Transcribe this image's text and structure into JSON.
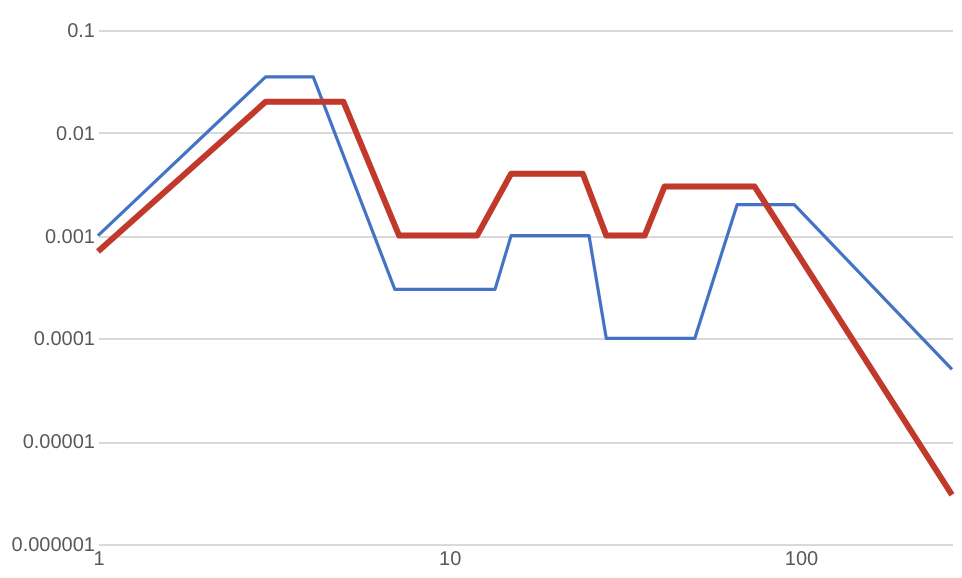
{
  "chart_data": {
    "type": "line",
    "log": "xy",
    "grid": "y",
    "line_style": "solid",
    "marker": "none",
    "xlim": [
      1,
      270
    ],
    "xticks": [
      1,
      10,
      100
    ],
    "ylim": [
      1e-06,
      0.1
    ],
    "yticks": [
      {
        "value": 1e-06,
        "label": "0.000001"
      },
      {
        "value": 1e-05,
        "label": "0.00001"
      },
      {
        "value": 0.0001,
        "label": "0.0001"
      },
      {
        "value": 0.001,
        "label": "0.001"
      },
      {
        "value": 0.01,
        "label": "0.01"
      },
      {
        "value": 0.1,
        "label": "0.1"
      }
    ],
    "series": [
      {
        "color": "#4472c4",
        "x": [
          1,
          3,
          4.1,
          7,
          13.5,
          15,
          25,
          28,
          50,
          66,
          96,
          270
        ],
        "values": [
          0.001,
          0.035,
          0.035,
          0.0003,
          0.0003,
          0.001,
          0.001,
          0.0001,
          0.0001,
          0.002,
          0.002,
          5e-05
        ]
      },
      {
        "color": "#c0392b",
        "x": [
          1,
          3,
          5,
          7.2,
          12,
          15,
          24,
          28,
          36,
          41,
          74,
          270
        ],
        "values": [
          0.0007,
          0.02,
          0.02,
          0.001,
          0.001,
          0.004,
          0.004,
          0.001,
          0.001,
          0.003,
          0.003,
          3e-06
        ]
      }
    ]
  }
}
